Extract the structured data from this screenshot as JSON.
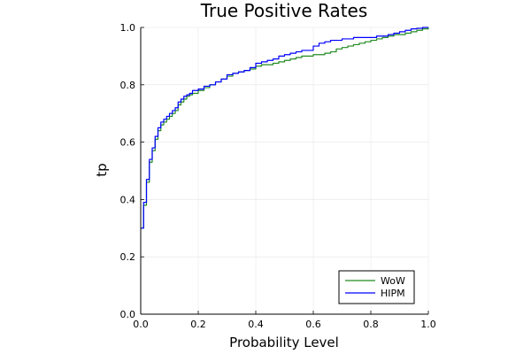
{
  "chart_data": {
    "type": "line",
    "title": "True Positive Rates",
    "xlabel": "Probability Level",
    "ylabel": "tp",
    "xlim": [
      0.0,
      1.0
    ],
    "ylim": [
      0.0,
      1.0
    ],
    "xticks": [
      "0.0",
      "0.2",
      "0.4",
      "0.6",
      "0.8",
      "1.0"
    ],
    "yticks": [
      "0.0",
      "0.2",
      "0.4",
      "0.6",
      "0.8",
      "1.0"
    ],
    "grid": true,
    "legend_position": "bottom-right",
    "series": [
      {
        "name": "WoW",
        "color": "#228b22",
        "x": [
          0.0,
          0.01,
          0.02,
          0.03,
          0.04,
          0.05,
          0.06,
          0.07,
          0.08,
          0.09,
          0.1,
          0.11,
          0.12,
          0.13,
          0.14,
          0.15,
          0.16,
          0.17,
          0.18,
          0.2,
          0.22,
          0.24,
          0.26,
          0.28,
          0.3,
          0.32,
          0.34,
          0.36,
          0.38,
          0.4,
          0.42,
          0.44,
          0.46,
          0.48,
          0.5,
          0.52,
          0.54,
          0.56,
          0.6,
          0.62,
          0.64,
          0.66,
          0.68,
          0.7,
          0.72,
          0.74,
          0.76,
          0.78,
          0.8,
          0.82,
          0.84,
          0.86,
          0.88,
          0.9,
          0.92,
          0.94,
          0.96,
          0.98,
          1.0
        ],
        "y": [
          0.3,
          0.38,
          0.46,
          0.53,
          0.57,
          0.61,
          0.64,
          0.66,
          0.67,
          0.68,
          0.69,
          0.7,
          0.71,
          0.73,
          0.74,
          0.75,
          0.76,
          0.765,
          0.77,
          0.78,
          0.79,
          0.8,
          0.81,
          0.82,
          0.83,
          0.84,
          0.845,
          0.85,
          0.855,
          0.865,
          0.87,
          0.87,
          0.875,
          0.88,
          0.885,
          0.89,
          0.895,
          0.9,
          0.905,
          0.905,
          0.91,
          0.915,
          0.925,
          0.93,
          0.935,
          0.94,
          0.945,
          0.95,
          0.955,
          0.96,
          0.965,
          0.97,
          0.975,
          0.975,
          0.98,
          0.985,
          0.99,
          0.995,
          1.0
        ]
      },
      {
        "name": "HIPM",
        "color": "#0000ff",
        "x": [
          0.0,
          0.01,
          0.02,
          0.03,
          0.04,
          0.05,
          0.06,
          0.07,
          0.08,
          0.09,
          0.1,
          0.11,
          0.12,
          0.13,
          0.14,
          0.15,
          0.16,
          0.17,
          0.18,
          0.2,
          0.22,
          0.24,
          0.26,
          0.28,
          0.3,
          0.32,
          0.34,
          0.36,
          0.38,
          0.4,
          0.42,
          0.44,
          0.46,
          0.48,
          0.5,
          0.52,
          0.54,
          0.56,
          0.6,
          0.62,
          0.64,
          0.66,
          0.68,
          0.7,
          0.72,
          0.74,
          0.76,
          0.78,
          0.8,
          0.82,
          0.84,
          0.86,
          0.88,
          0.9,
          0.92,
          0.94,
          0.96,
          0.98,
          1.0
        ],
        "y": [
          0.3,
          0.39,
          0.47,
          0.54,
          0.58,
          0.62,
          0.65,
          0.67,
          0.68,
          0.69,
          0.7,
          0.71,
          0.72,
          0.74,
          0.75,
          0.76,
          0.765,
          0.77,
          0.78,
          0.785,
          0.795,
          0.8,
          0.81,
          0.82,
          0.835,
          0.84,
          0.845,
          0.85,
          0.86,
          0.875,
          0.88,
          0.885,
          0.89,
          0.9,
          0.905,
          0.91,
          0.915,
          0.92,
          0.935,
          0.945,
          0.95,
          0.955,
          0.955,
          0.96,
          0.96,
          0.965,
          0.965,
          0.965,
          0.965,
          0.97,
          0.97,
          0.975,
          0.98,
          0.985,
          0.99,
          0.995,
          0.997,
          1.0,
          1.0
        ]
      }
    ]
  }
}
